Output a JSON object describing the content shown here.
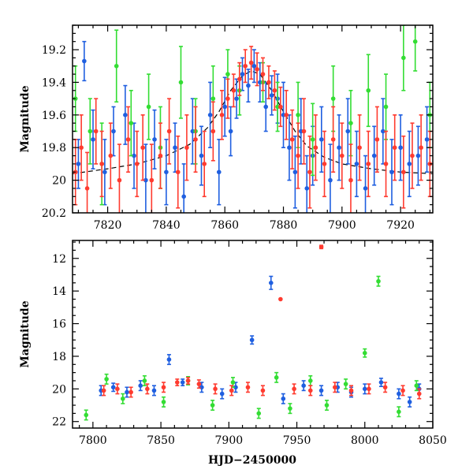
{
  "chart_data": [
    {
      "type": "scatter",
      "title": "",
      "xlabel": "",
      "ylabel": "Magnitude",
      "xlim": [
        7808,
        7931
      ],
      "ylim": [
        20.2,
        19.05
      ],
      "y_inverted": true,
      "xticks": [
        7820,
        7840,
        7860,
        7880,
        7900,
        7920
      ],
      "yticks": [
        19.2,
        19.4,
        19.6,
        19.8,
        20,
        20.2
      ],
      "xtick_labels": [
        "7820",
        "7840",
        "7860",
        "7880",
        "7900",
        "7920"
      ],
      "ytick_labels": [
        "19.2",
        "19.4",
        "19.6",
        "19.8",
        "20",
        "20.2"
      ],
      "series_colors": {
        "blue": "#1f5fe0",
        "green": "#33dd33",
        "red": "#ff3b2f"
      },
      "model_curve": {
        "style": "dashed",
        "color": "#000000",
        "x": [
          7808,
          7820,
          7830,
          7840,
          7848,
          7854,
          7858,
          7862,
          7866,
          7869,
          7872,
          7876,
          7880,
          7884,
          7888,
          7894,
          7900,
          7910,
          7920,
          7931
        ],
        "y": [
          19.96,
          19.93,
          19.9,
          19.85,
          19.78,
          19.68,
          19.58,
          19.45,
          19.36,
          19.33,
          19.35,
          19.45,
          19.58,
          19.7,
          19.79,
          19.86,
          19.9,
          19.93,
          19.95,
          19.96
        ]
      },
      "series": [
        {
          "color": "#1f5fe0",
          "x": [
            7810,
            7812,
            7815,
            7819,
            7822,
            7826,
            7829,
            7833,
            7836,
            7840,
            7843,
            7846,
            7849,
            7852,
            7855,
            7858,
            7860,
            7862,
            7864,
            7866,
            7868,
            7870,
            7872,
            7874,
            7876,
            7878,
            7880,
            7882,
            7884,
            7886,
            7888,
            7890,
            7893,
            7896,
            7899,
            7902,
            7905,
            7908,
            7911,
            7914,
            7917,
            7920,
            7923,
            7926,
            7929
          ],
          "y": [
            19.9,
            19.27,
            19.75,
            19.95,
            19.7,
            19.6,
            19.85,
            20.0,
            19.75,
            19.95,
            19.8,
            20.1,
            19.7,
            19.85,
            19.6,
            19.95,
            19.55,
            19.7,
            19.5,
            19.35,
            19.42,
            19.3,
            19.4,
            19.55,
            19.48,
            19.5,
            19.6,
            19.8,
            19.95,
            19.7,
            20.05,
            19.85,
            19.75,
            20.0,
            19.8,
            19.7,
            19.9,
            20.05,
            19.85,
            19.7,
            19.95,
            19.8,
            19.9,
            19.85,
            19.75
          ],
          "err": [
            0.15,
            0.12,
            0.18,
            0.2,
            0.15,
            0.18,
            0.2,
            0.22,
            0.18,
            0.2,
            0.15,
            0.2,
            0.2,
            0.18,
            0.2,
            0.2,
            0.18,
            0.15,
            0.12,
            0.1,
            0.1,
            0.1,
            0.12,
            0.15,
            0.12,
            0.15,
            0.2,
            0.2,
            0.22,
            0.2,
            0.2,
            0.18,
            0.2,
            0.22,
            0.2,
            0.2,
            0.2,
            0.2,
            0.18,
            0.2,
            0.2,
            0.2,
            0.2,
            0.18,
            0.2
          ]
        },
        {
          "color": "#33dd33",
          "x": [
            7809,
            7814,
            7818,
            7823,
            7828,
            7834,
            7838,
            7845,
            7850,
            7856,
            7861,
            7865,
            7873,
            7878,
            7885,
            7890,
            7897,
            7903,
            7909,
            7915,
            7921,
            7925,
            7930
          ],
          "y": [
            19.5,
            19.7,
            19.9,
            19.3,
            19.65,
            19.55,
            19.8,
            19.4,
            19.7,
            19.5,
            19.35,
            19.45,
            19.4,
            19.55,
            19.6,
            19.75,
            19.5,
            19.65,
            19.45,
            19.55,
            19.25,
            19.15,
            19.6
          ],
          "err": [
            0.2,
            0.2,
            0.25,
            0.22,
            0.2,
            0.2,
            0.25,
            0.22,
            0.2,
            0.2,
            0.15,
            0.15,
            0.12,
            0.15,
            0.2,
            0.22,
            0.2,
            0.2,
            0.22,
            0.2,
            0.2,
            0.18,
            0.2
          ]
        },
        {
          "color": "#ff3b2f",
          "x": [
            7809,
            7811,
            7813,
            7816,
            7818,
            7821,
            7824,
            7827,
            7830,
            7832,
            7835,
            7838,
            7841,
            7844,
            7847,
            7850,
            7853,
            7856,
            7859,
            7861,
            7863,
            7865,
            7867,
            7869,
            7871,
            7873,
            7875,
            7877,
            7879,
            7881,
            7883,
            7885,
            7887,
            7889,
            7891,
            7894,
            7897,
            7900,
            7903,
            7906,
            7909,
            7912,
            7915,
            7918,
            7921,
            7924,
            7927,
            7930
          ],
          "y": [
            19.95,
            19.8,
            20.05,
            19.7,
            19.9,
            19.85,
            20.0,
            19.75,
            19.9,
            19.8,
            20.0,
            19.85,
            19.7,
            19.95,
            19.8,
            19.75,
            19.9,
            19.7,
            19.6,
            19.5,
            19.45,
            19.38,
            19.3,
            19.28,
            19.32,
            19.35,
            19.4,
            19.45,
            19.55,
            19.6,
            19.75,
            19.85,
            19.7,
            19.95,
            19.8,
            19.9,
            19.75,
            19.85,
            20.0,
            19.8,
            19.9,
            19.75,
            19.9,
            19.8,
            19.95,
            19.85,
            19.8,
            19.9
          ],
          "err": [
            0.2,
            0.2,
            0.22,
            0.2,
            0.2,
            0.2,
            0.22,
            0.2,
            0.2,
            0.2,
            0.22,
            0.2,
            0.2,
            0.22,
            0.2,
            0.2,
            0.2,
            0.18,
            0.15,
            0.12,
            0.1,
            0.1,
            0.1,
            0.1,
            0.1,
            0.1,
            0.1,
            0.12,
            0.12,
            0.15,
            0.18,
            0.2,
            0.2,
            0.22,
            0.2,
            0.2,
            0.2,
            0.2,
            0.22,
            0.2,
            0.2,
            0.2,
            0.2,
            0.2,
            0.22,
            0.2,
            0.2,
            0.2
          ]
        }
      ]
    },
    {
      "type": "scatter",
      "title": "",
      "xlabel": "HJD−2450000",
      "ylabel": "Magnitude",
      "xlim": [
        7785,
        8050
      ],
      "ylim": [
        22.4,
        10.9
      ],
      "y_inverted": true,
      "xticks": [
        7800,
        7850,
        7900,
        7950,
        8000,
        8050
      ],
      "yticks": [
        12,
        14,
        16,
        18,
        20,
        22
      ],
      "xtick_labels": [
        "7800",
        "7850",
        "7900",
        "7950",
        "8000",
        "8050"
      ],
      "ytick_labels": [
        "12",
        "14",
        "16",
        "18",
        "20",
        "22"
      ],
      "series_colors": {
        "blue": "#1f5fe0",
        "green": "#33dd33",
        "red": "#ff3b2f"
      },
      "series": [
        {
          "color": "#1f5fe0",
          "x": [
            7806,
            7815,
            7825,
            7835,
            7845,
            7856,
            7866,
            7880,
            7895,
            7905,
            7917,
            7931,
            7940,
            7955,
            7968,
            7980,
            7990,
            8000,
            8012,
            8025,
            8033,
            8040
          ],
          "y": [
            20.1,
            19.9,
            20.2,
            19.8,
            20.1,
            18.2,
            19.6,
            19.9,
            20.3,
            19.9,
            17.0,
            13.5,
            20.6,
            19.8,
            20.1,
            19.9,
            20.2,
            20.0,
            19.6,
            20.3,
            20.8,
            20.0
          ],
          "err": [
            0.3,
            0.25,
            0.3,
            0.3,
            0.3,
            0.3,
            0.2,
            0.3,
            0.3,
            0.3,
            0.25,
            0.4,
            0.3,
            0.3,
            0.3,
            0.3,
            0.3,
            0.3,
            0.25,
            0.3,
            0.3,
            0.3
          ]
        },
        {
          "color": "#33dd33",
          "x": [
            7795,
            7810,
            7822,
            7838,
            7852,
            7870,
            7888,
            7903,
            7922,
            7935,
            7945,
            7960,
            7972,
            7986,
            8000,
            8010,
            8025,
            8038
          ],
          "y": [
            21.6,
            19.4,
            20.6,
            19.5,
            20.8,
            19.5,
            21.0,
            19.6,
            21.5,
            19.3,
            21.2,
            19.5,
            21.0,
            19.7,
            17.8,
            13.4,
            21.4,
            19.8
          ],
          "err": [
            0.3,
            0.3,
            0.3,
            0.3,
            0.3,
            0.25,
            0.3,
            0.3,
            0.3,
            0.3,
            0.3,
            0.3,
            0.3,
            0.3,
            0.25,
            0.3,
            0.3,
            0.3
          ]
        },
        {
          "color": "#ff3b2f",
          "x": [
            7808,
            7818,
            7828,
            7840,
            7852,
            7862,
            7870,
            7878,
            7890,
            7902,
            7914,
            7925,
            7938,
            7948,
            7960,
            7968,
            7978,
            7990,
            8003,
            8015,
            8028,
            8040
          ],
          "y": [
            20.1,
            20.0,
            20.2,
            20.0,
            19.9,
            19.6,
            19.5,
            19.7,
            20.0,
            20.1,
            19.9,
            20.1,
            14.5,
            20.0,
            20.1,
            11.3,
            19.9,
            20.1,
            20.0,
            19.9,
            20.1,
            20.3
          ],
          "err": [
            0.3,
            0.3,
            0.3,
            0.3,
            0.3,
            0.2,
            0.2,
            0.25,
            0.3,
            0.3,
            0.3,
            0.3,
            0.0,
            0.3,
            0.3,
            0.1,
            0.3,
            0.3,
            0.3,
            0.3,
            0.3,
            0.3
          ]
        }
      ]
    }
  ]
}
